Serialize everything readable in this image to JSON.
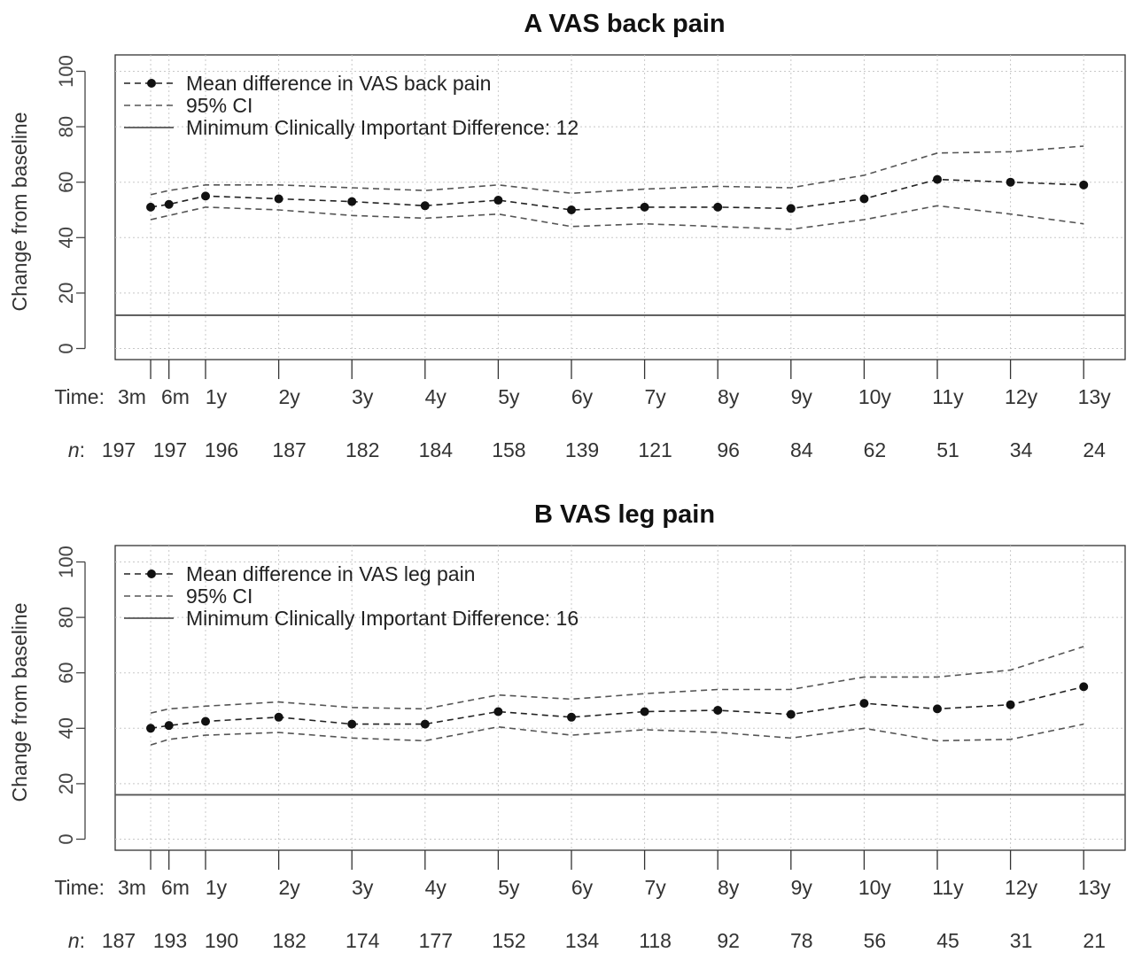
{
  "chart_data": [
    {
      "type": "line",
      "title_letter": "A",
      "title": "VAS back pain",
      "ylabel": "Change from baseline",
      "ylim": [
        0,
        100
      ],
      "yticks": [
        0,
        20,
        40,
        60,
        80,
        100
      ],
      "grid": true,
      "legend_placement": "top-left",
      "time_label": "Time:",
      "n_label": "n",
      "categories": [
        "3m",
        "6m",
        "1y",
        "2y",
        "3y",
        "4y",
        "5y",
        "6y",
        "7y",
        "8y",
        "9y",
        "10y",
        "11y",
        "12y",
        "13y"
      ],
      "x": [
        0.25,
        0.5,
        1,
        2,
        3,
        4,
        5,
        6,
        7,
        8,
        9,
        10,
        11,
        12,
        13
      ],
      "n": [
        "197",
        "197",
        "196",
        "187",
        "182",
        "184",
        "158",
        "139",
        "121",
        "96",
        "84",
        "62",
        "51",
        "34",
        "24"
      ],
      "series": [
        {
          "name": "Mean difference in VAS back pain",
          "style": "dashed-points",
          "values": [
            51,
            52,
            55,
            54,
            53,
            51.5,
            53.5,
            50,
            51,
            51,
            50.5,
            54,
            61,
            60,
            59
          ]
        },
        {
          "name": "95% CI",
          "style": "dashed",
          "upper": [
            55.5,
            57,
            59,
            59,
            58,
            57,
            59,
            56,
            57.5,
            58.5,
            58,
            62.5,
            70.5,
            71,
            73
          ],
          "lower": [
            46.5,
            48,
            51,
            50,
            48,
            47,
            48.5,
            44,
            45,
            44,
            43,
            46.5,
            51.5,
            48.5,
            45
          ]
        },
        {
          "name": "Minimum Clinically Important Difference: 12",
          "style": "solid",
          "value": 12
        }
      ]
    },
    {
      "type": "line",
      "title_letter": "B",
      "title": "VAS leg pain",
      "ylabel": "Change from baseline",
      "ylim": [
        0,
        100
      ],
      "yticks": [
        0,
        20,
        40,
        60,
        80,
        100
      ],
      "grid": true,
      "legend_placement": "top-left",
      "time_label": "Time:",
      "n_label": "n",
      "categories": [
        "3m",
        "6m",
        "1y",
        "2y",
        "3y",
        "4y",
        "5y",
        "6y",
        "7y",
        "8y",
        "9y",
        "10y",
        "11y",
        "12y",
        "13y"
      ],
      "x": [
        0.25,
        0.5,
        1,
        2,
        3,
        4,
        5,
        6,
        7,
        8,
        9,
        10,
        11,
        12,
        13
      ],
      "n": [
        "187",
        "193",
        "190",
        "182",
        "174",
        "177",
        "152",
        "134",
        "118",
        "92",
        "78",
        "56",
        "45",
        "31",
        "21"
      ],
      "series": [
        {
          "name": "Mean difference in VAS leg pain",
          "style": "dashed-points",
          "values": [
            40,
            41,
            42.5,
            44,
            41.5,
            41.5,
            46,
            44,
            46,
            46.5,
            45,
            49,
            47,
            48.5,
            55
          ]
        },
        {
          "name": "95% CI",
          "style": "dashed",
          "upper": [
            45.5,
            47,
            48,
            49.5,
            47.5,
            47,
            52,
            50.5,
            52.5,
            54,
            54,
            58.5,
            58.5,
            61,
            69.5
          ],
          "lower": [
            34,
            36,
            37.5,
            38.5,
            36.5,
            35.5,
            40.5,
            37.5,
            39.5,
            38.5,
            36.5,
            40,
            35.5,
            36,
            41.5
          ]
        },
        {
          "name": "Minimum Clinically Important Difference: 16",
          "style": "solid",
          "value": 16
        }
      ]
    }
  ]
}
